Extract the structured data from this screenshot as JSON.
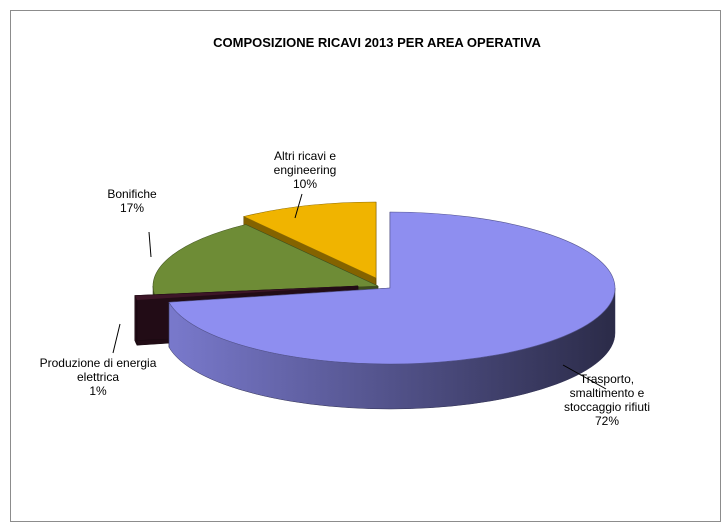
{
  "chart_data": {
    "type": "pie",
    "title": "COMPOSIZIONE RICAVI 2013  PER AREA OPERATIVA",
    "unit": "%",
    "slices": [
      {
        "label_lines": [
          "Trasporto,",
          "smaltimento e",
          "stoccaggio rifiuti"
        ],
        "value": 72,
        "value_label": "72%",
        "color": "#8e8ef0"
      },
      {
        "label_lines": [
          "Produzione di energia",
          "elettrica"
        ],
        "value": 1,
        "value_label": "1%",
        "color": "#3d1628"
      },
      {
        "label_lines": [
          "Bonifiche"
        ],
        "value": 17,
        "value_label": "17%",
        "color": "#6e8c36"
      },
      {
        "label_lines": [
          "Altri ricavi e",
          "engineering"
        ],
        "value": 10,
        "value_label": "10%",
        "color": "#f0b400"
      }
    ],
    "style": "3d-exploded",
    "legend": "none"
  }
}
